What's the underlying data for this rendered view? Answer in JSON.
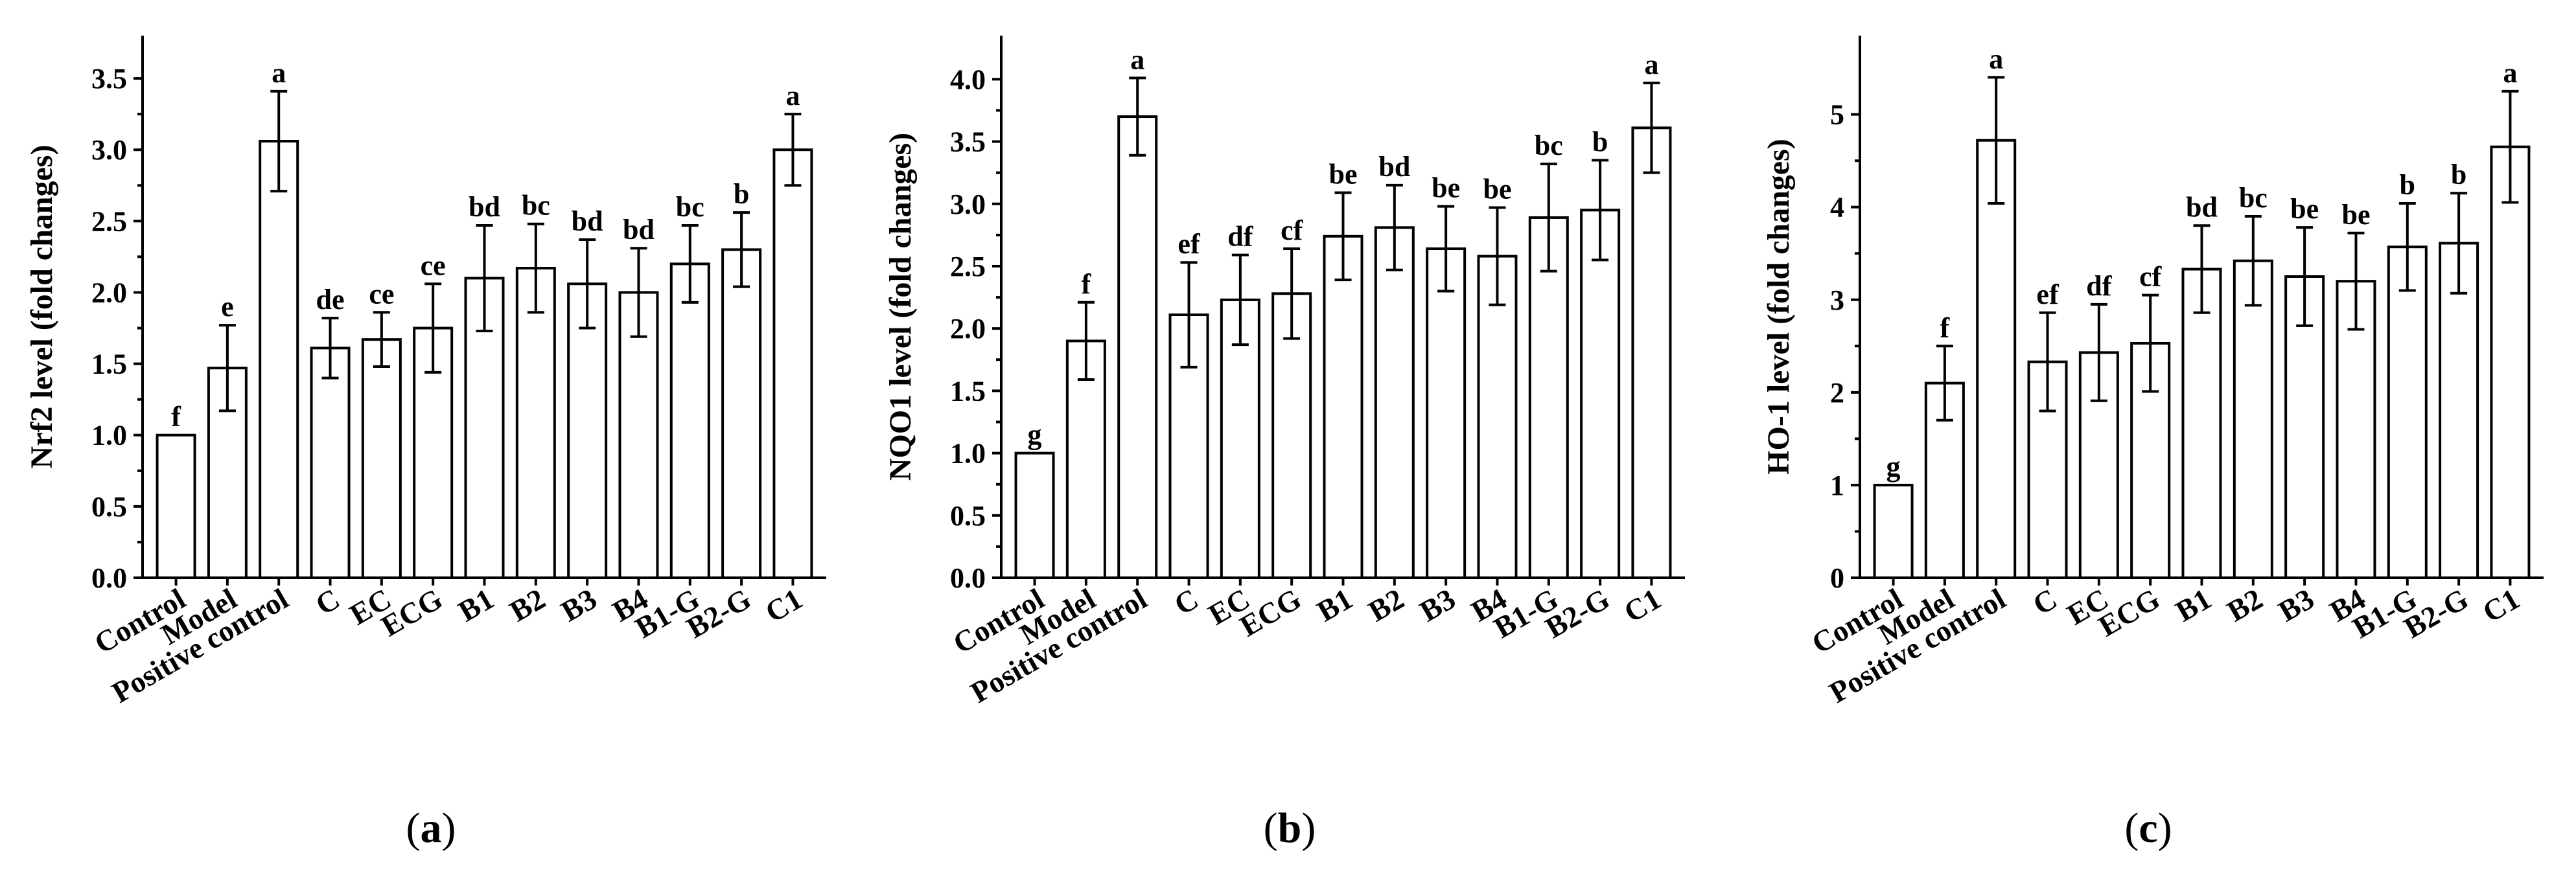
{
  "chart_data": [
    {
      "type": "bar",
      "panel": "a",
      "ylabel": "Nrf2 level (fold changes)",
      "xlabel": "",
      "ylim": [
        0,
        3.8
      ],
      "yticks": [
        "0.0",
        "0.5",
        "1.0",
        "1.5",
        "2.0",
        "2.5",
        "3.0",
        "3.5"
      ],
      "categories": [
        "Control",
        "Model",
        "Positive control",
        "C",
        "EC",
        "ECG",
        "B1",
        "B2",
        "B3",
        "B4",
        "B1-G",
        "B2-G",
        "C1"
      ],
      "values": [
        1.0,
        1.47,
        3.06,
        1.61,
        1.67,
        1.75,
        2.1,
        2.17,
        2.06,
        2.0,
        2.2,
        2.3,
        3.0
      ],
      "errors": [
        0.0,
        0.3,
        0.35,
        0.21,
        0.19,
        0.31,
        0.37,
        0.31,
        0.31,
        0.31,
        0.27,
        0.26,
        0.25
      ],
      "significance": [
        "f",
        "e",
        "a",
        "de",
        "ce",
        "ce",
        "bd",
        "bc",
        "bd",
        "bd",
        "bc",
        "b",
        "a"
      ]
    },
    {
      "type": "bar",
      "panel": "b",
      "ylabel": "NQO1 level (fold changes)",
      "xlabel": "",
      "ylim": [
        0,
        4.35
      ],
      "yticks": [
        "0.0",
        "0.5",
        "1.0",
        "1.5",
        "2.0",
        "2.5",
        "3.0",
        "3.5",
        "4.0"
      ],
      "categories": [
        "Control",
        "Model",
        "Positive control",
        "C",
        "EC",
        "ECG",
        "B1",
        "B2",
        "B3",
        "B4",
        "B1-G",
        "B2-G",
        "C1"
      ],
      "values": [
        1.0,
        1.9,
        3.7,
        2.11,
        2.23,
        2.28,
        2.74,
        2.81,
        2.64,
        2.58,
        2.89,
        2.95,
        3.61
      ],
      "errors": [
        0.0,
        0.31,
        0.31,
        0.42,
        0.36,
        0.36,
        0.35,
        0.34,
        0.34,
        0.39,
        0.43,
        0.4,
        0.36
      ],
      "significance": [
        "g",
        "f",
        "a",
        "ef",
        "df",
        "cf",
        "be",
        "bd",
        "be",
        "be",
        "bc",
        "b",
        "a"
      ]
    },
    {
      "type": "bar",
      "panel": "c",
      "ylabel": "HO-1 level (fold changes)",
      "xlabel": "",
      "ylim": [
        0,
        5.85
      ],
      "yticks": [
        "0",
        "1",
        "2",
        "3",
        "4",
        "5"
      ],
      "categories": [
        "Control",
        "Model",
        "Positive control",
        "C",
        "EC",
        "ECG",
        "B1",
        "B2",
        "B3",
        "B4",
        "B1-G",
        "B2-G",
        "C1"
      ],
      "values": [
        1.0,
        2.1,
        4.72,
        2.33,
        2.43,
        2.53,
        3.33,
        3.42,
        3.25,
        3.2,
        3.57,
        3.61,
        4.65
      ],
      "errors": [
        0.0,
        0.4,
        0.68,
        0.53,
        0.52,
        0.52,
        0.47,
        0.48,
        0.53,
        0.52,
        0.47,
        0.54,
        0.6
      ],
      "significance": [
        "g",
        "f",
        "a",
        "ef",
        "df",
        "cf",
        "bd",
        "bc",
        "be",
        "be",
        "b",
        "b",
        "a"
      ]
    }
  ],
  "panel_labels": [
    "(a)",
    "(b)",
    "(c)"
  ]
}
